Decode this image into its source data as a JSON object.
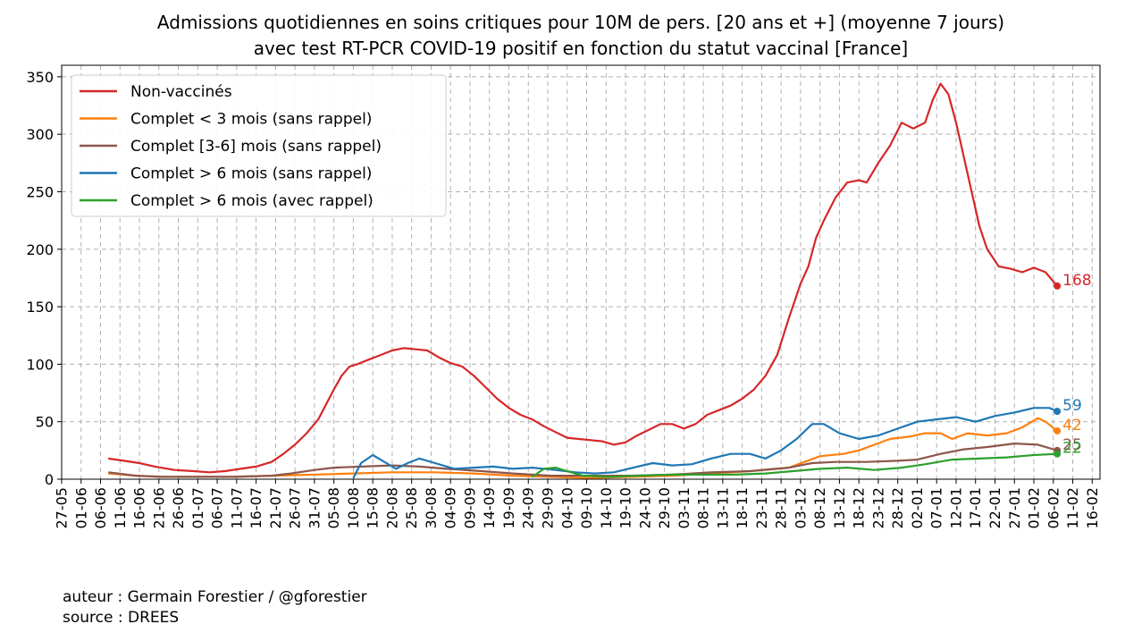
{
  "chart_data": {
    "type": "line",
    "title": [
      "Admissions quotidiennes en soins critiques pour 10M de pers. [20 ans et +] (moyenne 7 jours)",
      "avec test RT-PCR COVID-19 positif en fonction du statut vaccinal [France]"
    ],
    "xlabel": "",
    "ylabel": "",
    "x_start": "2021-05-27",
    "x_end": "2022-02-18",
    "xticks": [
      "27-05",
      "01-06",
      "06-06",
      "11-06",
      "16-06",
      "21-06",
      "26-06",
      "01-07",
      "06-07",
      "11-07",
      "16-07",
      "21-07",
      "26-07",
      "31-07",
      "05-08",
      "10-08",
      "15-08",
      "20-08",
      "25-08",
      "30-08",
      "04-09",
      "09-09",
      "14-09",
      "19-09",
      "24-09",
      "29-09",
      "04-10",
      "09-10",
      "14-10",
      "19-10",
      "24-10",
      "29-10",
      "03-11",
      "08-11",
      "13-11",
      "18-11",
      "23-11",
      "28-11",
      "03-12",
      "08-12",
      "13-12",
      "18-12",
      "23-12",
      "28-12",
      "02-01",
      "07-01",
      "12-01",
      "17-01",
      "22-01",
      "27-01",
      "01-02",
      "06-02",
      "11-02",
      "16-02"
    ],
    "ylim": [
      0,
      360
    ],
    "yticks": [
      0,
      50,
      100,
      150,
      200,
      250,
      300,
      350
    ],
    "grid": true,
    "legend_position": "top-left",
    "series": [
      {
        "name": "Non-vaccinés",
        "color": "#d62728",
        "end_label": "168",
        "points": [
          [
            "2021-06-08",
            18
          ],
          [
            "2021-06-12",
            16
          ],
          [
            "2021-06-16",
            14
          ],
          [
            "2021-06-20",
            11
          ],
          [
            "2021-06-25",
            8
          ],
          [
            "2021-06-30",
            7
          ],
          [
            "2021-07-04",
            6
          ],
          [
            "2021-07-08",
            7
          ],
          [
            "2021-07-12",
            9
          ],
          [
            "2021-07-16",
            11
          ],
          [
            "2021-07-20",
            15
          ],
          [
            "2021-07-23",
            22
          ],
          [
            "2021-07-26",
            30
          ],
          [
            "2021-07-29",
            40
          ],
          [
            "2021-08-01",
            52
          ],
          [
            "2021-08-03",
            65
          ],
          [
            "2021-08-05",
            78
          ],
          [
            "2021-08-07",
            90
          ],
          [
            "2021-08-09",
            98
          ],
          [
            "2021-08-11",
            100
          ],
          [
            "2021-08-14",
            104
          ],
          [
            "2021-08-17",
            108
          ],
          [
            "2021-08-20",
            112
          ],
          [
            "2021-08-23",
            114
          ],
          [
            "2021-08-26",
            113
          ],
          [
            "2021-08-29",
            112
          ],
          [
            "2021-09-01",
            106
          ],
          [
            "2021-09-04",
            101
          ],
          [
            "2021-09-07",
            98
          ],
          [
            "2021-09-10",
            90
          ],
          [
            "2021-09-13",
            80
          ],
          [
            "2021-09-16",
            70
          ],
          [
            "2021-09-19",
            62
          ],
          [
            "2021-09-22",
            56
          ],
          [
            "2021-09-25",
            52
          ],
          [
            "2021-09-28",
            46
          ],
          [
            "2021-10-01",
            41
          ],
          [
            "2021-10-04",
            36
          ],
          [
            "2021-10-07",
            35
          ],
          [
            "2021-10-10",
            34
          ],
          [
            "2021-10-13",
            33
          ],
          [
            "2021-10-16",
            30
          ],
          [
            "2021-10-19",
            32
          ],
          [
            "2021-10-22",
            38
          ],
          [
            "2021-10-25",
            43
          ],
          [
            "2021-10-28",
            48
          ],
          [
            "2021-10-31",
            48
          ],
          [
            "2021-11-03",
            44
          ],
          [
            "2021-11-06",
            48
          ],
          [
            "2021-11-09",
            56
          ],
          [
            "2021-11-12",
            60
          ],
          [
            "2021-11-15",
            64
          ],
          [
            "2021-11-18",
            70
          ],
          [
            "2021-11-21",
            78
          ],
          [
            "2021-11-24",
            90
          ],
          [
            "2021-11-27",
            108
          ],
          [
            "2021-11-30",
            140
          ],
          [
            "2021-12-03",
            170
          ],
          [
            "2021-12-05",
            185
          ],
          [
            "2021-12-07",
            210
          ],
          [
            "2021-12-09",
            225
          ],
          [
            "2021-12-12",
            245
          ],
          [
            "2021-12-15",
            258
          ],
          [
            "2021-12-18",
            260
          ],
          [
            "2021-12-20",
            258
          ],
          [
            "2021-12-23",
            275
          ],
          [
            "2021-12-26",
            290
          ],
          [
            "2021-12-29",
            310
          ],
          [
            "2022-01-01",
            305
          ],
          [
            "2022-01-04",
            310
          ],
          [
            "2022-01-06",
            330
          ],
          [
            "2022-01-08",
            344
          ],
          [
            "2022-01-10",
            335
          ],
          [
            "2022-01-12",
            310
          ],
          [
            "2022-01-14",
            280
          ],
          [
            "2022-01-16",
            250
          ],
          [
            "2022-01-18",
            220
          ],
          [
            "2022-01-20",
            200
          ],
          [
            "2022-01-23",
            185
          ],
          [
            "2022-01-26",
            183
          ],
          [
            "2022-01-29",
            180
          ],
          [
            "2022-02-01",
            184
          ],
          [
            "2022-02-04",
            180
          ],
          [
            "2022-02-07",
            168
          ]
        ]
      },
      {
        "name": "Complet < 3 mois (sans rappel)",
        "color": "#ff7f0e",
        "end_label": "42",
        "points": [
          [
            "2021-06-08",
            5
          ],
          [
            "2021-06-15",
            3
          ],
          [
            "2021-06-22",
            2
          ],
          [
            "2021-07-01",
            2
          ],
          [
            "2021-07-10",
            2
          ],
          [
            "2021-07-20",
            3
          ],
          [
            "2021-07-31",
            4
          ],
          [
            "2021-08-10",
            5
          ],
          [
            "2021-08-20",
            6
          ],
          [
            "2021-08-31",
            6
          ],
          [
            "2021-09-10",
            5
          ],
          [
            "2021-09-20",
            3
          ],
          [
            "2021-09-30",
            2
          ],
          [
            "2021-10-10",
            1
          ],
          [
            "2021-10-20",
            2
          ],
          [
            "2021-10-31",
            3
          ],
          [
            "2021-11-10",
            5
          ],
          [
            "2021-11-20",
            7
          ],
          [
            "2021-11-30",
            10
          ],
          [
            "2021-12-04",
            15
          ],
          [
            "2021-12-08",
            20
          ],
          [
            "2021-12-14",
            22
          ],
          [
            "2021-12-18",
            25
          ],
          [
            "2021-12-22",
            30
          ],
          [
            "2021-12-26",
            35
          ],
          [
            "2021-12-31",
            37
          ],
          [
            "2022-01-04",
            40
          ],
          [
            "2022-01-08",
            40
          ],
          [
            "2022-01-11",
            35
          ],
          [
            "2022-01-15",
            40
          ],
          [
            "2022-01-20",
            38
          ],
          [
            "2022-01-25",
            40
          ],
          [
            "2022-01-29",
            45
          ],
          [
            "2022-02-02",
            53
          ],
          [
            "2022-02-04",
            50
          ],
          [
            "2022-02-07",
            42
          ]
        ]
      },
      {
        "name": "Complet [3-6] mois (sans rappel)",
        "color": "#8c564b",
        "end_label": "25",
        "points": [
          [
            "2021-06-08",
            6
          ],
          [
            "2021-06-15",
            3
          ],
          [
            "2021-06-22",
            2
          ],
          [
            "2021-07-01",
            2
          ],
          [
            "2021-07-10",
            2
          ],
          [
            "2021-07-20",
            3
          ],
          [
            "2021-07-25",
            5
          ],
          [
            "2021-07-31",
            8
          ],
          [
            "2021-08-05",
            10
          ],
          [
            "2021-08-12",
            11
          ],
          [
            "2021-08-20",
            12
          ],
          [
            "2021-08-27",
            11
          ],
          [
            "2021-09-03",
            9
          ],
          [
            "2021-09-12",
            7
          ],
          [
            "2021-09-20",
            5
          ],
          [
            "2021-09-30",
            3
          ],
          [
            "2021-10-10",
            3
          ],
          [
            "2021-10-20",
            3
          ],
          [
            "2021-10-31",
            4
          ],
          [
            "2021-11-10",
            6
          ],
          [
            "2021-11-20",
            7
          ],
          [
            "2021-11-30",
            10
          ],
          [
            "2021-12-06",
            14
          ],
          [
            "2021-12-12",
            15
          ],
          [
            "2021-12-20",
            15
          ],
          [
            "2021-12-28",
            16
          ],
          [
            "2022-01-02",
            17
          ],
          [
            "2022-01-08",
            22
          ],
          [
            "2022-01-14",
            26
          ],
          [
            "2022-01-20",
            28
          ],
          [
            "2022-01-27",
            31
          ],
          [
            "2022-02-02",
            30
          ],
          [
            "2022-02-07",
            25
          ]
        ]
      },
      {
        "name": "Complet > 6 mois (sans rappel)",
        "color": "#1f77b4",
        "end_label": "59",
        "points": [
          [
            "2021-08-10",
            1
          ],
          [
            "2021-08-12",
            14
          ],
          [
            "2021-08-15",
            21
          ],
          [
            "2021-08-18",
            15
          ],
          [
            "2021-08-21",
            9
          ],
          [
            "2021-08-24",
            14
          ],
          [
            "2021-08-27",
            18
          ],
          [
            "2021-08-31",
            14
          ],
          [
            "2021-09-05",
            9
          ],
          [
            "2021-09-10",
            10
          ],
          [
            "2021-09-15",
            11
          ],
          [
            "2021-09-20",
            9
          ],
          [
            "2021-09-25",
            10
          ],
          [
            "2021-10-01",
            8
          ],
          [
            "2021-10-06",
            6
          ],
          [
            "2021-10-11",
            5
          ],
          [
            "2021-10-16",
            6
          ],
          [
            "2021-10-21",
            10
          ],
          [
            "2021-10-26",
            14
          ],
          [
            "2021-10-31",
            12
          ],
          [
            "2021-11-05",
            13
          ],
          [
            "2021-11-10",
            18
          ],
          [
            "2021-11-15",
            22
          ],
          [
            "2021-11-20",
            22
          ],
          [
            "2021-11-24",
            18
          ],
          [
            "2021-11-28",
            25
          ],
          [
            "2021-12-02",
            35
          ],
          [
            "2021-12-06",
            48
          ],
          [
            "2021-12-09",
            48
          ],
          [
            "2021-12-13",
            40
          ],
          [
            "2021-12-18",
            35
          ],
          [
            "2021-12-23",
            38
          ],
          [
            "2021-12-28",
            44
          ],
          [
            "2022-01-02",
            50
          ],
          [
            "2022-01-07",
            52
          ],
          [
            "2022-01-12",
            54
          ],
          [
            "2022-01-17",
            50
          ],
          [
            "2022-01-22",
            55
          ],
          [
            "2022-01-27",
            58
          ],
          [
            "2022-02-01",
            62
          ],
          [
            "2022-02-05",
            62
          ],
          [
            "2022-02-07",
            59
          ]
        ]
      },
      {
        "name": "Complet > 6 mois (avec rappel)",
        "color": "#2ca02c",
        "end_label": "22",
        "points": [
          [
            "2021-09-25",
            2
          ],
          [
            "2021-09-28",
            9
          ],
          [
            "2021-10-01",
            10
          ],
          [
            "2021-10-04",
            7
          ],
          [
            "2021-10-08",
            3
          ],
          [
            "2021-10-15",
            2
          ],
          [
            "2021-10-22",
            3
          ],
          [
            "2021-10-31",
            4
          ],
          [
            "2021-11-08",
            4
          ],
          [
            "2021-11-16",
            4
          ],
          [
            "2021-11-24",
            5
          ],
          [
            "2021-12-01",
            7
          ],
          [
            "2021-12-08",
            9
          ],
          [
            "2021-12-15",
            10
          ],
          [
            "2021-12-22",
            8
          ],
          [
            "2021-12-29",
            10
          ],
          [
            "2022-01-04",
            13
          ],
          [
            "2022-01-11",
            17
          ],
          [
            "2022-01-18",
            18
          ],
          [
            "2022-01-25",
            19
          ],
          [
            "2022-02-01",
            21
          ],
          [
            "2022-02-07",
            22
          ]
        ]
      }
    ]
  },
  "footer": {
    "author": "auteur : Germain Forestier / @gforestier",
    "source": "source : DREES"
  }
}
